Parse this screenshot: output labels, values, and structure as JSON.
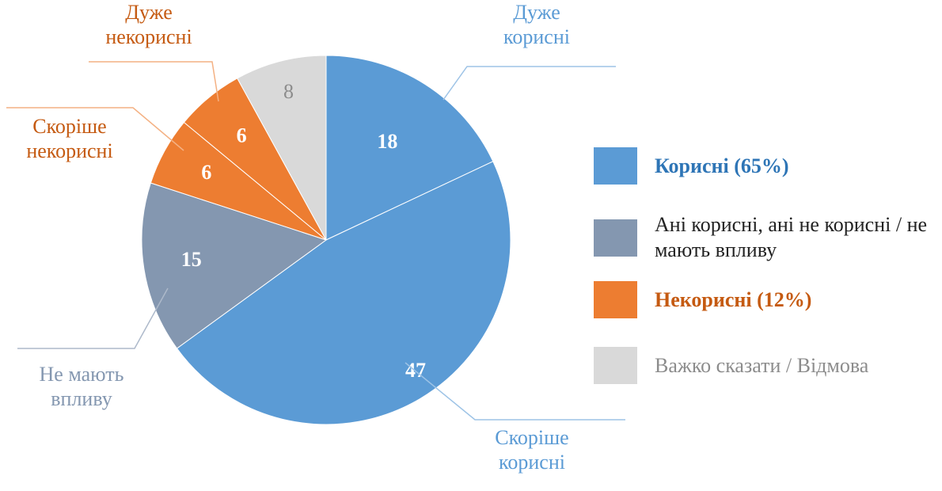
{
  "chart_data": {
    "type": "pie",
    "start_angle_deg": 0,
    "direction": "clockwise",
    "slices": [
      {
        "label": "Дуже корисні",
        "value": 18,
        "color": "#5B9BD5",
        "group": "Корисні (65%)"
      },
      {
        "label": "Скоріше корисні",
        "value": 47,
        "color": "#5B9BD5",
        "group": "Корисні (65%)"
      },
      {
        "label": "Не мають впливу",
        "value": 15,
        "color": "#8497B0",
        "group": "Ані корисні, ані не корисні / не мають впливу"
      },
      {
        "label": "Скоріше некорисні",
        "value": 6,
        "color": "#ED7D31",
        "group": "Некорисні (12%)"
      },
      {
        "label": "Дуже некорисні",
        "value": 6,
        "color": "#ED7D31",
        "group": "Некорисні (12%)"
      },
      {
        "label": "",
        "value": 8,
        "color": "#D9D9D9",
        "group": "Важко сказати / Відмова"
      }
    ],
    "slice_value_text": [
      "18",
      "47",
      "15",
      "6",
      "6",
      "8"
    ],
    "legend": [
      {
        "label": "Корисні (65%)",
        "color": "#5B9BD5",
        "text_color": "#2E75B6",
        "bold": true
      },
      {
        "label": "Ані корисні, ані не корисні / не мають впливу",
        "color": "#8497B0",
        "text_color": "#222222",
        "bold": false
      },
      {
        "label": "Некорисні (12%)",
        "color": "#ED7D31",
        "text_color": "#C55A11",
        "bold": true
      },
      {
        "label": "Важко сказати / Відмова",
        "color": "#D9D9D9",
        "text_color": "#8C8C8C",
        "bold": false
      }
    ],
    "legend_position": "right"
  },
  "callouts": [
    {
      "lines": [
        "Дуже",
        "корисні"
      ],
      "color": "#5B9BD5"
    },
    {
      "lines": [
        "Скоріше",
        "корисні"
      ],
      "color": "#5B9BD5"
    },
    {
      "lines": [
        "Не мають",
        "впливу"
      ],
      "color": "#8497B0"
    },
    {
      "lines": [
        "Скоріше",
        "некорисні"
      ],
      "color": "#C55A11"
    },
    {
      "lines": [
        "Дуже",
        "некорисні"
      ],
      "color": "#C55A11"
    }
  ]
}
